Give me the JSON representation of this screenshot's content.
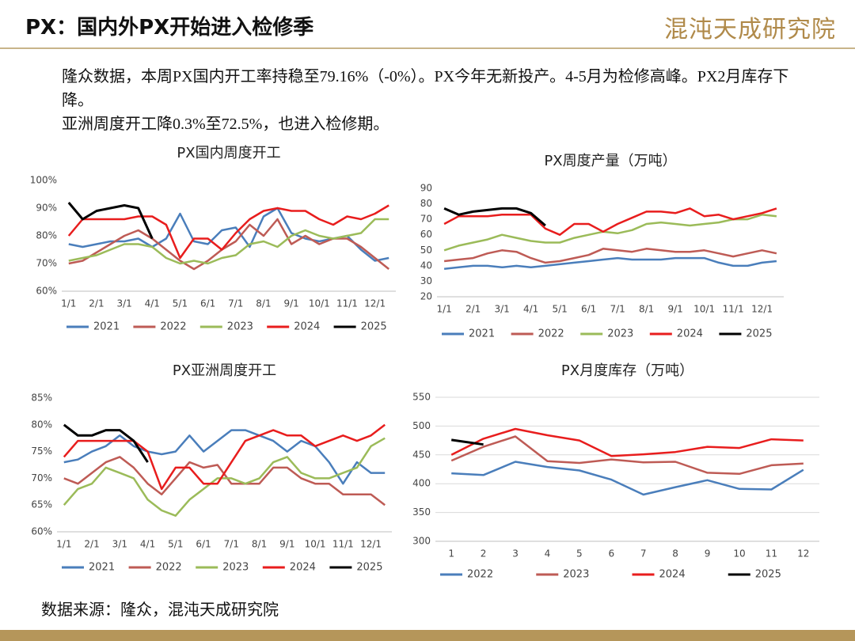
{
  "header": {
    "title": "PX：国内外PX开始进入检修季",
    "logo": "混沌天成研究院"
  },
  "text": [
    "隆众数据，本周PX国内开工率持稳至79.16%（-0%）。PX今年无新投产。4-5月为检修高峰。PX2月库存下降。",
    "亚洲周度开工降0.3%至72.5%，也进入检修期。"
  ],
  "source": "数据来源：隆众，混沌天成研究院",
  "chart_data": [
    {
      "type": "line",
      "title": "PX国内周度开工",
      "categories": [
        "1/1",
        null,
        "2/1",
        null,
        "3/1",
        null,
        "4/1",
        null,
        "5/1",
        null,
        "6/1",
        null,
        "7/1",
        null,
        "8/1",
        null,
        "9/1",
        null,
        "10/1",
        null,
        "11/1",
        null,
        "12/1",
        null
      ],
      "ylim": [
        60,
        100
      ],
      "yticks": [
        {
          "value": 60,
          "label": "60%"
        },
        {
          "value": 70,
          "label": "70%"
        },
        {
          "value": 80,
          "label": "80%"
        },
        {
          "value": 90,
          "label": "90%"
        },
        {
          "value": 100,
          "label": "100%"
        }
      ],
      "grid": false,
      "series": [
        {
          "name": "2021",
          "color": "#4a7ebb",
          "values": [
            77,
            76,
            77,
            78,
            78,
            79,
            76,
            79,
            88,
            78,
            77,
            82,
            83,
            76,
            87,
            90,
            81,
            79,
            78,
            79,
            80,
            75,
            71,
            72
          ]
        },
        {
          "name": "2022",
          "color": "#be5b55",
          "values": [
            70,
            71,
            74,
            77,
            80,
            82,
            79,
            75,
            71,
            68,
            71,
            75,
            78,
            84,
            80,
            86,
            77,
            80,
            77,
            79,
            79,
            76,
            72,
            68
          ]
        },
        {
          "name": "2023",
          "color": "#9bbb59",
          "values": [
            71,
            72,
            73,
            75,
            77,
            77,
            76,
            72,
            70,
            71,
            70,
            72,
            73,
            77,
            78,
            76,
            80,
            82,
            80,
            79,
            80,
            81,
            86,
            86
          ]
        },
        {
          "name": "2024",
          "color": "#e81d1d",
          "values": [
            80,
            86,
            86,
            86,
            86,
            87,
            87,
            84,
            72,
            79,
            79,
            75,
            81,
            86,
            89,
            90,
            89,
            89,
            86,
            84,
            87,
            86,
            88,
            91
          ]
        },
        {
          "name": "2025",
          "color": "#000000",
          "values": [
            92,
            86,
            89,
            90,
            91,
            90,
            79,
            null,
            null,
            null,
            null,
            null,
            null,
            null,
            null,
            null,
            null,
            null,
            null,
            null,
            null,
            null,
            null,
            null
          ]
        }
      ]
    },
    {
      "type": "line",
      "title": "PX周度产量（万吨）",
      "categories": [
        "1/1",
        null,
        "2/1",
        null,
        "3/1",
        null,
        "4/1",
        null,
        "5/1",
        null,
        "6/1",
        null,
        "7/1",
        null,
        "8/1",
        null,
        "9/1",
        null,
        "10/1",
        null,
        "11/1",
        null,
        "12/1",
        null
      ],
      "ylim": [
        20,
        90
      ],
      "yticks": [
        20,
        30,
        40,
        50,
        60,
        70,
        80,
        90
      ],
      "grid": false,
      "series": [
        {
          "name": "2021",
          "color": "#4a7ebb",
          "values": [
            38,
            39,
            40,
            40,
            39,
            40,
            39,
            40,
            41,
            42,
            43,
            44,
            45,
            44,
            44,
            44,
            45,
            45,
            45,
            42,
            40,
            40,
            42,
            43
          ]
        },
        {
          "name": "2022",
          "color": "#be5b55",
          "values": [
            43,
            44,
            45,
            48,
            50,
            49,
            45,
            42,
            43,
            45,
            47,
            51,
            50,
            49,
            51,
            50,
            49,
            49,
            50,
            48,
            46,
            48,
            50,
            48
          ]
        },
        {
          "name": "2023",
          "color": "#9bbb59",
          "values": [
            50,
            53,
            55,
            57,
            60,
            58,
            56,
            55,
            55,
            58,
            60,
            62,
            61,
            63,
            67,
            68,
            67,
            66,
            67,
            68,
            70,
            70,
            73,
            72
          ]
        },
        {
          "name": "2024",
          "color": "#e81d1d",
          "values": [
            67,
            72,
            72,
            72,
            73,
            73,
            73,
            64,
            60,
            67,
            67,
            62,
            67,
            71,
            75,
            75,
            74,
            77,
            72,
            73,
            70,
            72,
            74,
            77
          ]
        },
        {
          "name": "2025",
          "color": "#000000",
          "values": [
            77,
            73,
            75,
            76,
            77,
            77,
            74,
            66,
            null,
            null,
            null,
            null,
            null,
            null,
            null,
            null,
            null,
            null,
            null,
            null,
            null,
            null,
            null,
            null
          ]
        }
      ]
    },
    {
      "type": "line",
      "title": "PX亚洲周度开工",
      "categories": [
        "1/1",
        null,
        "2/1",
        null,
        "3/1",
        null,
        "4/1",
        null,
        "5/1",
        null,
        "6/1",
        null,
        "7/1",
        null,
        "8/1",
        null,
        "9/1",
        null,
        "10/1",
        null,
        "11/1",
        null,
        "12/1",
        null
      ],
      "ylim": [
        60,
        85
      ],
      "yticks": [
        {
          "value": 60,
          "label": "60%"
        },
        {
          "value": 65,
          "label": "65%"
        },
        {
          "value": 70,
          "label": "70%"
        },
        {
          "value": 75,
          "label": "75%"
        },
        {
          "value": 80,
          "label": "80%"
        },
        {
          "value": 85,
          "label": "85%"
        }
      ],
      "grid": false,
      "series": [
        {
          "name": "2021",
          "color": "#4a7ebb",
          "values": [
            73,
            73.5,
            75,
            76,
            78,
            76,
            75,
            74.5,
            75,
            78,
            75,
            77,
            79,
            79,
            78,
            77,
            75,
            77,
            76,
            73,
            69,
            73,
            71,
            71
          ]
        },
        {
          "name": "2022",
          "color": "#be5b55",
          "values": [
            70,
            69,
            71,
            73,
            74,
            72,
            69,
            67,
            70,
            73,
            72,
            72.5,
            69,
            69,
            69,
            72,
            72,
            70,
            69,
            69,
            67,
            67,
            67,
            65
          ]
        },
        {
          "name": "2023",
          "color": "#9bbb59",
          "values": [
            65,
            68,
            69,
            72,
            71,
            70,
            66,
            64,
            63,
            66,
            68,
            70,
            70,
            69,
            70,
            73,
            74,
            71,
            70,
            70,
            71,
            72,
            76,
            77.5
          ]
        },
        {
          "name": "2024",
          "color": "#e81d1d",
          "values": [
            74,
            77,
            77,
            77,
            77,
            77,
            75,
            68,
            72,
            72,
            69,
            69,
            73,
            77,
            78,
            79,
            78,
            78,
            76,
            77,
            78,
            77,
            78,
            80
          ]
        },
        {
          "name": "2025",
          "color": "#000000",
          "values": [
            80,
            78,
            78,
            79,
            79,
            77,
            73,
            null,
            null,
            null,
            null,
            null,
            null,
            null,
            null,
            null,
            null,
            null,
            null,
            null,
            null,
            null,
            null,
            null
          ]
        }
      ]
    },
    {
      "type": "line",
      "title": "PX月度库存（万吨）",
      "categories": [
        "1",
        "2",
        "3",
        "4",
        "5",
        "6",
        "7",
        "8",
        "9",
        "10",
        "11",
        "12"
      ],
      "ylim": [
        300,
        550
      ],
      "yticks": [
        300,
        350,
        400,
        450,
        500,
        550
      ],
      "grid": true,
      "series": [
        {
          "name": "2022",
          "color": "#4a7ebb",
          "values": [
            418,
            415,
            438,
            429,
            423,
            407,
            381,
            394,
            406,
            391,
            390,
            424
          ]
        },
        {
          "name": "2023",
          "color": "#be5b55",
          "values": [
            440,
            464,
            482,
            439,
            436,
            442,
            437,
            438,
            419,
            417,
            432,
            435
          ]
        },
        {
          "name": "2024",
          "color": "#e81d1d",
          "values": [
            450,
            478,
            495,
            484,
            475,
            448,
            451,
            455,
            464,
            462,
            477,
            475
          ]
        },
        {
          "name": "2025",
          "color": "#000000",
          "values": [
            476,
            468,
            null,
            null,
            null,
            null,
            null,
            null,
            null,
            null,
            null,
            null
          ]
        }
      ]
    }
  ]
}
